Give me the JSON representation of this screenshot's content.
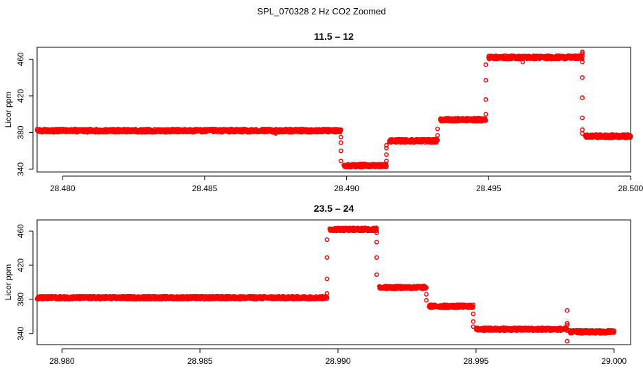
{
  "figure": {
    "title": "SPL_070328  2 Hz CO2 Zoomed"
  },
  "colors": {
    "points": "#ff0000",
    "axes": "#000000"
  },
  "chart_data": [
    {
      "type": "scatter",
      "title": "11.5 – 12",
      "xlabel": "",
      "ylabel": "Licor ppm",
      "xlim": [
        28.4791,
        28.5
      ],
      "ylim": [
        337,
        473
      ],
      "xticks": [
        {
          "value": 28.48,
          "label": "28.480"
        },
        {
          "value": 28.485,
          "label": "28.485"
        },
        {
          "value": 28.49,
          "label": "28.490"
        },
        {
          "value": 28.495,
          "label": "28.495"
        },
        {
          "value": 28.5,
          "label": "28.500"
        }
      ],
      "yticks": [
        {
          "value": 340,
          "label": "340"
        },
        {
          "value": 380,
          "label": "380"
        },
        {
          "value": 420,
          "label": "420"
        },
        {
          "value": 460,
          "label": "460"
        }
      ],
      "marker_symbol": "open-circle",
      "series": [
        {
          "levels": [
            {
              "x_start": 28.4791,
              "x_end": 28.4898,
              "y": 382
            },
            {
              "x_start": 28.4899,
              "x_end": 28.4914,
              "y": 344
            },
            {
              "x_start": 28.4915,
              "x_end": 28.4932,
              "y": 371
            },
            {
              "x_start": 28.4933,
              "x_end": 28.4949,
              "y": 394
            },
            {
              "x_start": 28.495,
              "x_end": 28.4983,
              "y": 462
            },
            {
              "x_start": 28.4984,
              "x_end": 28.5,
              "y": 376
            }
          ],
          "transitions": [
            {
              "x": 28.4898,
              "y": [
                375,
                369,
                360,
                349
              ]
            },
            {
              "x": 28.4914,
              "y": [
                349,
                356,
                363,
                366
              ]
            },
            {
              "x": 28.4932,
              "y": [
                377,
                384
              ]
            },
            {
              "x": 28.4949,
              "y": [
                400,
                416,
                437,
                454
              ]
            },
            {
              "x": 28.4983,
              "y": [
                468,
                466,
                457,
                440,
                418,
                396,
                383,
                379
              ]
            }
          ],
          "outliers": [
            {
              "x": 28.4962,
              "y": 457
            },
            {
              "x": 28.4875,
              "y": 379
            }
          ]
        }
      ]
    },
    {
      "type": "scatter",
      "title": "23.5 – 24",
      "xlabel": "",
      "ylabel": "Licor ppm",
      "xlim": [
        28.9791,
        29.0006
      ],
      "ylim": [
        327,
        473
      ],
      "xticks": [
        {
          "value": 28.98,
          "label": "28.980"
        },
        {
          "value": 28.985,
          "label": "28.985"
        },
        {
          "value": 28.99,
          "label": "28.990"
        },
        {
          "value": 28.995,
          "label": "28.995"
        },
        {
          "value": 29.0,
          "label": "29.000"
        }
      ],
      "yticks": [
        {
          "value": 340,
          "label": "340"
        },
        {
          "value": 380,
          "label": "380"
        },
        {
          "value": 420,
          "label": "420"
        },
        {
          "value": 460,
          "label": "460"
        }
      ],
      "marker_symbol": "open-circle",
      "series": [
        {
          "levels": [
            {
              "x_start": 28.9791,
              "x_end": 28.9896,
              "y": 382
            },
            {
              "x_start": 28.9897,
              "x_end": 28.9914,
              "y": 462
            },
            {
              "x_start": 28.9915,
              "x_end": 28.9932,
              "y": 394
            },
            {
              "x_start": 28.9933,
              "x_end": 28.9949,
              "y": 372
            },
            {
              "x_start": 28.995,
              "x_end": 28.9983,
              "y": 345
            },
            {
              "x_start": 28.9984,
              "x_end": 29.0,
              "y": 342
            }
          ],
          "transitions": [
            {
              "x": 28.9896,
              "y": [
                387,
                404,
                429,
                450
              ]
            },
            {
              "x": 28.9914,
              "y": [
                458,
                447,
                429,
                409
              ]
            },
            {
              "x": 28.9932,
              "y": [
                386,
                379
              ]
            },
            {
              "x": 28.9949,
              "y": [
                363,
                354,
                348
              ]
            },
            {
              "x": 28.9983,
              "y": [
                367,
                352,
                350,
                331
              ]
            }
          ],
          "outliers": [
            {
              "x": 28.996,
              "y": 347
            }
          ]
        }
      ]
    }
  ]
}
